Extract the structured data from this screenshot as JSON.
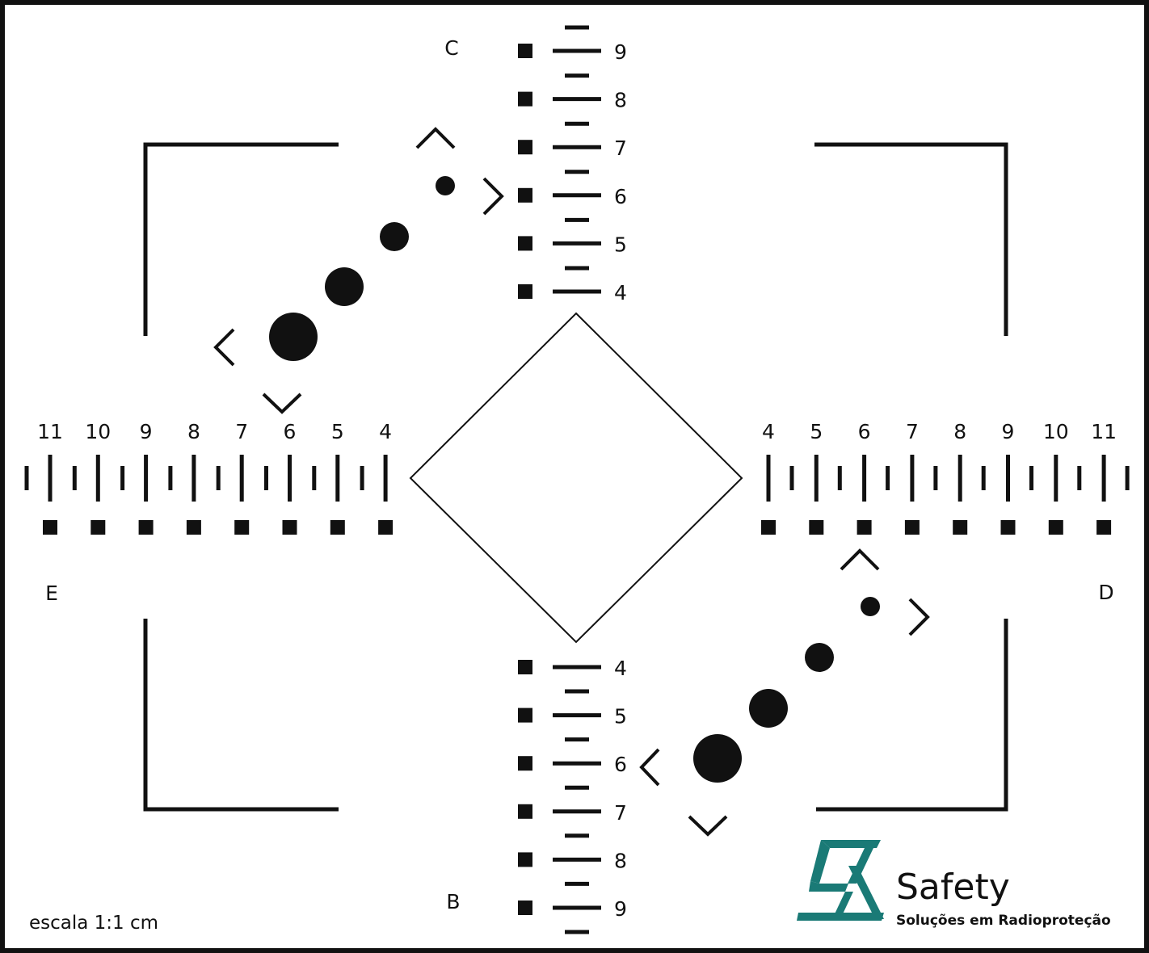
{
  "colors": {
    "ink": "#111111",
    "paper": "#ffffff",
    "brand": "#1a7a76"
  },
  "labels": {
    "top": "C",
    "bottom": "B",
    "left": "E",
    "right": "D"
  },
  "scale_note": "escala 1:1 cm",
  "brand": {
    "name": "Safety",
    "tagline": "Soluções em Radioproteção"
  },
  "scales": {
    "top": [
      "9",
      "8",
      "7",
      "6",
      "5",
      "4"
    ],
    "bottom": [
      "4",
      "5",
      "6",
      "7",
      "8",
      "9"
    ],
    "left": [
      "11",
      "10",
      "9",
      "8",
      "7",
      "6",
      "5",
      "4"
    ],
    "right": [
      "4",
      "5",
      "6",
      "7",
      "8",
      "9",
      "10",
      "11"
    ]
  },
  "icons": {
    "target": "diamond-target-icon",
    "chevron": "chevron-icon",
    "dot": "dot-icon",
    "logo": "safety-logo-icon"
  }
}
